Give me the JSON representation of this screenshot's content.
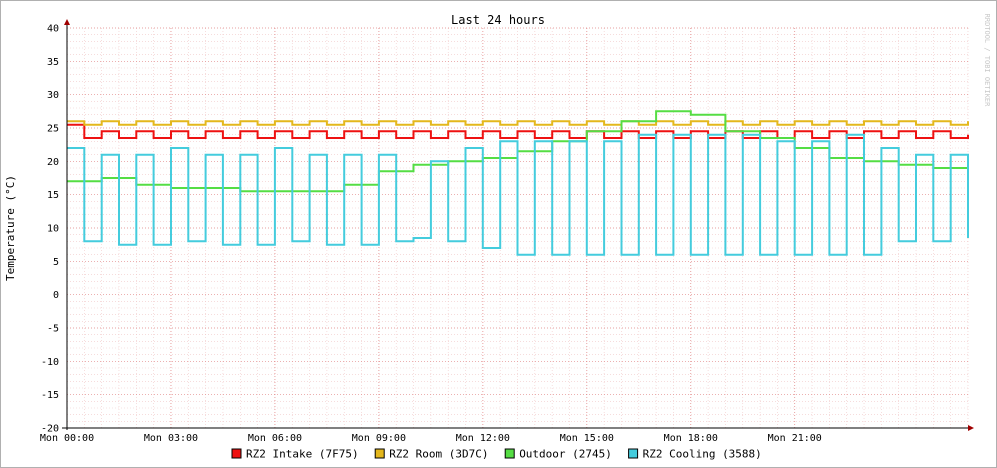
{
  "chart_data": {
    "type": "line",
    "title": "Last 24 hours",
    "ylabel": "Temperature (°C)",
    "watermark": "RRDTOOL / TOBI OETIKER",
    "ylim": [
      -20,
      40
    ],
    "y_ticks": [
      40,
      35,
      30,
      25,
      20,
      15,
      10,
      5,
      0,
      -5,
      -10,
      -15,
      -20
    ],
    "x_range_hours": [
      0,
      26
    ],
    "x_ticks": [
      {
        "hour": 0,
        "label": "Mon 00:00"
      },
      {
        "hour": 3,
        "label": "Mon 03:00"
      },
      {
        "hour": 6,
        "label": "Mon 06:00"
      },
      {
        "hour": 9,
        "label": "Mon 09:00"
      },
      {
        "hour": 12,
        "label": "Mon 12:00"
      },
      {
        "hour": 15,
        "label": "Mon 15:00"
      },
      {
        "hour": 18,
        "label": "Mon 18:00"
      },
      {
        "hour": 21,
        "label": "Mon 21:00"
      }
    ],
    "grid": true,
    "legend_position": "bottom",
    "series": [
      {
        "name": "RZ2 Intake (7F75)",
        "color": "#ee1111",
        "x": [
          0,
          0.5,
          1,
          1.5,
          2,
          2.5,
          3,
          3.5,
          4,
          4.5,
          5,
          5.5,
          6,
          6.5,
          7,
          7.5,
          8,
          8.5,
          9,
          9.5,
          10,
          10.5,
          11,
          11.5,
          12,
          12.5,
          13,
          13.5,
          14,
          14.5,
          15,
          15.5,
          16,
          16.5,
          17,
          17.5,
          18,
          18.5,
          19,
          19.5,
          20,
          20.5,
          21,
          21.5,
          22,
          22.5,
          23,
          23.5,
          24,
          24.5,
          25,
          25.5,
          26
        ],
        "y": [
          25.5,
          23.5,
          24.5,
          23.5,
          24.5,
          23.5,
          24.5,
          23.5,
          24.5,
          23.5,
          24.5,
          23.5,
          24.5,
          23.5,
          24.5,
          23.5,
          24.5,
          23.5,
          24.5,
          23.5,
          24.5,
          23.5,
          24.5,
          23.5,
          24.5,
          23.5,
          24.5,
          23.5,
          24.5,
          23.5,
          24.5,
          23.5,
          24.5,
          23.5,
          24.5,
          23.5,
          24.5,
          23.5,
          24.5,
          23.5,
          24.5,
          23.5,
          24.5,
          23.5,
          24.5,
          23.5,
          24.5,
          23.5,
          24.5,
          23.5,
          24.5,
          23.5,
          24
        ]
      },
      {
        "name": "RZ2 Room (3D7C)",
        "color": "#e4b71c",
        "x": [
          0,
          0.5,
          1,
          1.5,
          2,
          2.5,
          3,
          3.5,
          4,
          4.5,
          5,
          5.5,
          6,
          6.5,
          7,
          7.5,
          8,
          8.5,
          9,
          9.5,
          10,
          10.5,
          11,
          11.5,
          12,
          12.5,
          13,
          13.5,
          14,
          14.5,
          15,
          15.5,
          16,
          16.5,
          17,
          17.5,
          18,
          18.5,
          19,
          19.5,
          20,
          20.5,
          21,
          21.5,
          22,
          22.5,
          23,
          23.5,
          24,
          24.5,
          25,
          25.5,
          26
        ],
        "y": [
          26,
          25.5,
          26,
          25.5,
          26,
          25.5,
          26,
          25.5,
          26,
          25.5,
          26,
          25.5,
          26,
          25.5,
          26,
          25.5,
          26,
          25.5,
          26,
          25.5,
          26,
          25.5,
          26,
          25.5,
          26,
          25.5,
          26,
          25.5,
          26,
          25.5,
          26,
          25.5,
          26,
          25.5,
          26,
          25.5,
          26,
          25.5,
          26,
          25.5,
          26,
          25.5,
          26,
          25.5,
          26,
          25.5,
          26,
          25.5,
          26,
          25.5,
          26,
          25.5,
          26
        ]
      },
      {
        "name": "Outdoor (2745)",
        "color": "#55dd44",
        "x": [
          0,
          1,
          2,
          3,
          4,
          5,
          6,
          7,
          8,
          9,
          10,
          11,
          12,
          13,
          14,
          15,
          16,
          17,
          18,
          19,
          20,
          21,
          22,
          23,
          24,
          25,
          26
        ],
        "y": [
          17,
          17.5,
          16.5,
          16,
          16,
          15.5,
          15.5,
          15.5,
          16.5,
          18.5,
          19.5,
          20,
          20.5,
          21.5,
          23,
          24.5,
          26,
          27.5,
          27,
          24.5,
          23.5,
          22,
          20.5,
          20,
          19.5,
          19,
          18.5
        ]
      },
      {
        "name": "RZ2 Cooling (3588)",
        "color": "#44ccdd",
        "x": [
          0,
          0.5,
          1,
          1.5,
          2,
          2.5,
          3,
          3.5,
          4,
          4.5,
          5,
          5.5,
          6,
          6.5,
          7,
          7.5,
          8,
          8.5,
          9,
          9.5,
          10,
          10.5,
          11,
          11.5,
          12,
          12.5,
          13,
          13.5,
          14,
          14.5,
          15,
          15.5,
          16,
          16.5,
          17,
          17.5,
          18,
          18.5,
          19,
          19.5,
          20,
          20.5,
          21,
          21.5,
          22,
          22.5,
          23,
          23.5,
          24,
          24.5,
          25,
          25.5,
          26
        ],
        "y": [
          22,
          8,
          21,
          7.5,
          21,
          7.5,
          22,
          8,
          21,
          7.5,
          21,
          7.5,
          22,
          8,
          21,
          7.5,
          21,
          7.5,
          21,
          8,
          8.5,
          20,
          8,
          22,
          7,
          23,
          6,
          23,
          6,
          23,
          6,
          23,
          6,
          24,
          6,
          24,
          6,
          24,
          6,
          24,
          6,
          23,
          6,
          23,
          6,
          24,
          6,
          22,
          8,
          21,
          8,
          21,
          8.5
        ]
      }
    ]
  }
}
